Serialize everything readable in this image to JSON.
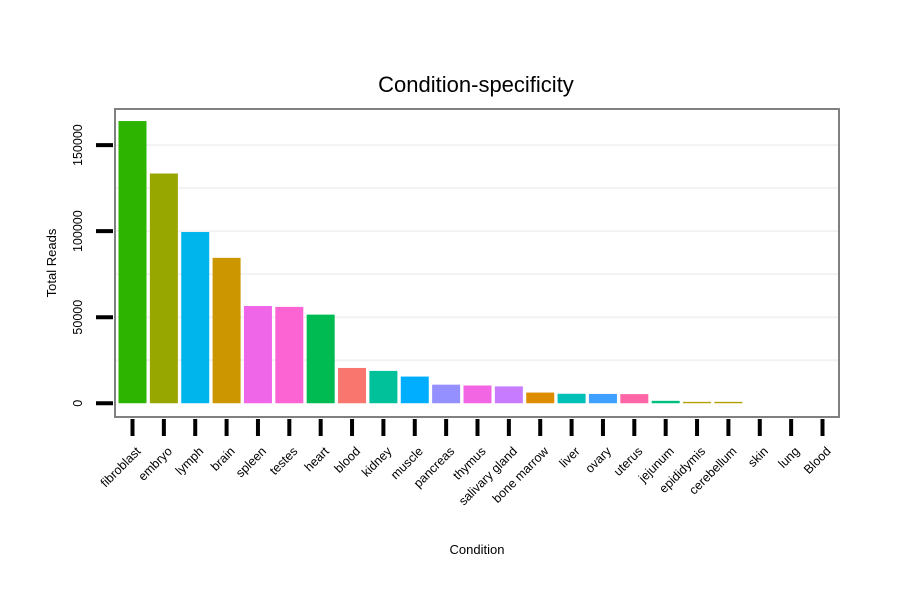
{
  "chart_data": {
    "type": "bar",
    "title": "Condition-specificity",
    "xlabel": "Condition",
    "ylabel": "Total Reads",
    "ylim": [
      -8000,
      171000
    ],
    "yticks": [
      0,
      50000,
      100000,
      150000
    ],
    "ytick_labels": [
      "0",
      "50000",
      "100000",
      "150000"
    ],
    "grid": true,
    "categories": [
      "fibroblast",
      "embryo",
      "lymph",
      "brain",
      "spleen",
      "testes",
      "heart",
      "blood",
      "kidney",
      "muscle",
      "pancreas",
      "thymus",
      "salivary gland",
      "bone marrow",
      "liver",
      "ovary",
      "uterus",
      "jejunum",
      "epididymis",
      "cerebellum",
      "skin",
      "lung",
      "Blood"
    ],
    "values": [
      164000,
      133500,
      99500,
      84500,
      56500,
      56000,
      51500,
      20500,
      18800,
      15500,
      10800,
      10300,
      9800,
      6200,
      5500,
      5400,
      5300,
      1400,
      800,
      800,
      0,
      0,
      0
    ],
    "colors": [
      "#2db400",
      "#98a600",
      "#00b5eb",
      "#cc9600",
      "#f066e8",
      "#fc63d3",
      "#00ba52",
      "#f8766d",
      "#00c19a",
      "#00aeff",
      "#9590ff",
      "#f266e4",
      "#c77cff",
      "#de8c00",
      "#00c0b8",
      "#3fa1ff",
      "#ff66a8",
      "#00bf7d",
      "#b4a000",
      "#b49d00",
      "#b49d00",
      "#b49d00",
      "#b49d00"
    ]
  }
}
